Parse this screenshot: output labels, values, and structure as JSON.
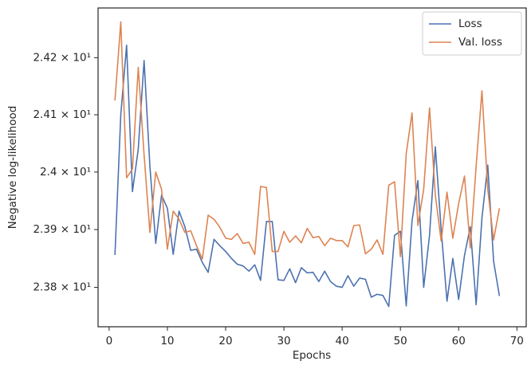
{
  "chart_data": {
    "type": "line",
    "x_label": "Epochs",
    "y_label": "Negative log-likelihood",
    "x": [
      1,
      2,
      3,
      4,
      5,
      6,
      7,
      8,
      9,
      10,
      11,
      12,
      13,
      14,
      15,
      16,
      17,
      18,
      19,
      20,
      21,
      22,
      23,
      24,
      25,
      26,
      27,
      28,
      29,
      30,
      31,
      32,
      33,
      34,
      35,
      36,
      37,
      38,
      39,
      40,
      41,
      42,
      43,
      44,
      45,
      46,
      47,
      48,
      49,
      50,
      51,
      52,
      53,
      54,
      55,
      56,
      57,
      58,
      59,
      60,
      61,
      62,
      63,
      64,
      65,
      66,
      67
    ],
    "series": [
      {
        "name": "Loss",
        "color": "#4c72b0",
        "values": [
          23.856,
          24.1,
          24.222,
          23.966,
          24.04,
          24.195,
          24.01,
          23.876,
          23.96,
          23.937,
          23.857,
          23.932,
          23.905,
          23.864,
          23.866,
          23.843,
          23.826,
          23.883,
          23.872,
          23.862,
          23.85,
          23.84,
          23.837,
          23.828,
          23.839,
          23.812,
          23.914,
          23.914,
          23.813,
          23.812,
          23.832,
          23.808,
          23.834,
          23.825,
          23.826,
          23.81,
          23.828,
          23.81,
          23.802,
          23.8,
          23.82,
          23.802,
          23.816,
          23.814,
          23.783,
          23.788,
          23.786,
          23.767,
          23.89,
          23.897,
          23.768,
          23.915,
          23.985,
          23.8,
          23.89,
          24.044,
          23.9,
          23.776,
          23.85,
          23.779,
          23.855,
          23.905,
          23.77,
          23.92,
          24.012,
          23.845,
          23.785
        ]
      },
      {
        "name": "Val. loss",
        "color": "#dd8452",
        "values": [
          24.125,
          24.263,
          23.99,
          24.005,
          24.183,
          24.03,
          23.895,
          24.0,
          23.97,
          23.866,
          23.932,
          23.918,
          23.895,
          23.898,
          23.872,
          23.849,
          23.925,
          23.918,
          23.904,
          23.885,
          23.883,
          23.893,
          23.876,
          23.878,
          23.857,
          23.975,
          23.973,
          23.862,
          23.862,
          23.897,
          23.878,
          23.889,
          23.877,
          23.902,
          23.886,
          23.888,
          23.872,
          23.885,
          23.881,
          23.881,
          23.87,
          23.907,
          23.908,
          23.858,
          23.866,
          23.882,
          23.857,
          23.977,
          23.983,
          23.853,
          24.032,
          24.103,
          23.907,
          23.97,
          24.112,
          23.96,
          23.88,
          23.965,
          23.885,
          23.945,
          23.993,
          23.868,
          24.01,
          24.142,
          23.97,
          23.882,
          23.937
        ]
      }
    ],
    "xlim": [
      -1.9,
      71.6
    ],
    "xticks": [
      0,
      10,
      20,
      30,
      40,
      50,
      60,
      70
    ],
    "ylim": [
      23.732,
      24.2875
    ],
    "yscale": "log",
    "yticks": [
      {
        "value": 23.8,
        "label": "2.38 × 10¹"
      },
      {
        "value": 23.9,
        "label": "2.39 × 10¹"
      },
      {
        "value": 24.0,
        "label": "2.4 × 10¹"
      },
      {
        "value": 24.1,
        "label": "2.41 × 10¹"
      },
      {
        "value": 24.2,
        "label": "2.42 × 10¹"
      }
    ],
    "grid": false,
    "legend": "upper right"
  }
}
